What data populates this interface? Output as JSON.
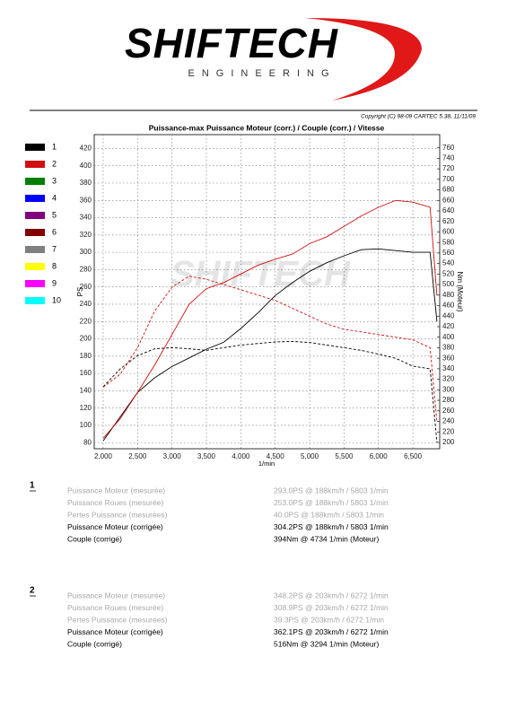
{
  "header": {
    "brand": "SHIFTECH",
    "tagline": "ENGINEERING",
    "copyright": "Copyright (C) 98-09 CARTEC 5.38, 11/11/09"
  },
  "chart_data": {
    "type": "line",
    "title": "Puissance-max Puissance Moteur (corr.) / Couple (corr.) / Vitesse",
    "x_label": "1/min",
    "y_label": "PS",
    "y2_label": "Nm (Moteur)",
    "grid": true,
    "xlim": [
      1870,
      6890
    ],
    "xticks": [
      {
        "value": 2000,
        "label": "2,000"
      },
      {
        "value": 2500,
        "label": "2,500"
      },
      {
        "value": 3000,
        "label": "3,000"
      },
      {
        "value": 3500,
        "label": "3,500"
      },
      {
        "value": 4000,
        "label": "4,000"
      },
      {
        "value": 4500,
        "label": "4,500"
      },
      {
        "value": 5000,
        "label": "5,000"
      },
      {
        "value": 5500,
        "label": "5,500"
      },
      {
        "value": 6000,
        "label": "6,000"
      },
      {
        "value": 6500,
        "label": "6,500"
      }
    ],
    "ylim": [
      73,
      436
    ],
    "yticks": [
      80,
      100,
      120,
      140,
      160,
      180,
      200,
      220,
      240,
      260,
      280,
      300,
      320,
      340,
      360,
      380,
      400,
      420
    ],
    "y2lim": [
      188,
      785
    ],
    "y2ticks": [
      200,
      220,
      240,
      260,
      280,
      300,
      320,
      340,
      360,
      380,
      400,
      420,
      440,
      460,
      480,
      500,
      520,
      540,
      560,
      580,
      600,
      620,
      640,
      660,
      680,
      700,
      720,
      740,
      760
    ],
    "x": [
      2000,
      2250,
      2500,
      2750,
      3000,
      3250,
      3500,
      3750,
      4000,
      4250,
      4500,
      4750,
      5000,
      5250,
      5500,
      5750,
      6000,
      6250,
      6500,
      6750,
      6850
    ],
    "series": [
      {
        "name": "1",
        "color": "#000000",
        "power": [
          82,
          110,
          138,
          155,
          168,
          178,
          188,
          196,
          212,
          230,
          250,
          265,
          278,
          288,
          296,
          303,
          304,
          302,
          300,
          300,
          220
        ],
        "torque": [
          306,
          340,
          365,
          378,
          380,
          378,
          375,
          380,
          385,
          388,
          391,
          392,
          390,
          385,
          380,
          375,
          368,
          360,
          345,
          340,
          200
        ]
      },
      {
        "name": "2",
        "color": "#d01010",
        "power": [
          85,
          108,
          138,
          170,
          205,
          240,
          258,
          265,
          275,
          285,
          292,
          298,
          310,
          318,
          330,
          342,
          352,
          360,
          358,
          352,
          250
        ],
        "torque": [
          305,
          330,
          380,
          450,
          495,
          516,
          510,
          500,
          490,
          480,
          470,
          455,
          440,
          425,
          415,
          410,
          405,
          400,
          395,
          380,
          240
        ]
      }
    ],
    "other_runs": [
      {
        "name": "3",
        "color": "#008000"
      },
      {
        "name": "4",
        "color": "#0000ff"
      },
      {
        "name": "5",
        "color": "#800080"
      },
      {
        "name": "6",
        "color": "#800000"
      },
      {
        "name": "7",
        "color": "#808080"
      },
      {
        "name": "8",
        "color": "#ffff00"
      },
      {
        "name": "9",
        "color": "#ff00ff"
      },
      {
        "name": "10",
        "color": "#00ffff"
      }
    ]
  },
  "runs": [
    {
      "number": "1",
      "rows": [
        [
          "Puissance Moteur (mesurée)",
          "293.0PS @ 188km/h / 5803 1/min"
        ],
        [
          "Puissance Roues (mesurée)",
          "253.0PS @ 188km/h / 5803 1/min"
        ],
        [
          "Pertes Puissance (mesurées)",
          "40.0PS @ 188km/h / 5803 1/min"
        ],
        [
          "Puissance Moteur (corrigée)",
          "304.2PS @ 188km/h / 5803 1/min"
        ],
        [
          "Couple (corrigé)",
          "394Nm @ 4734 1/min (Moteur)"
        ]
      ]
    },
    {
      "number": "2",
      "rows": [
        [
          "Puissance Moteur (mesurée)",
          "348.2PS @ 203km/h / 6272 1/min"
        ],
        [
          "Puissance Roues (mesurée)",
          "308.9PS @ 203km/h / 6272 1/min"
        ],
        [
          "Pertes Puissance (mesurées)",
          "39.3PS @ 203km/h / 6272 1/min"
        ],
        [
          "Puissance Moteur (corrigée)",
          "362.1PS @ 203km/h / 6272 1/min"
        ],
        [
          "Couple (corrigé)",
          "516Nm @ 3294 1/min (Moteur)"
        ]
      ]
    }
  ]
}
